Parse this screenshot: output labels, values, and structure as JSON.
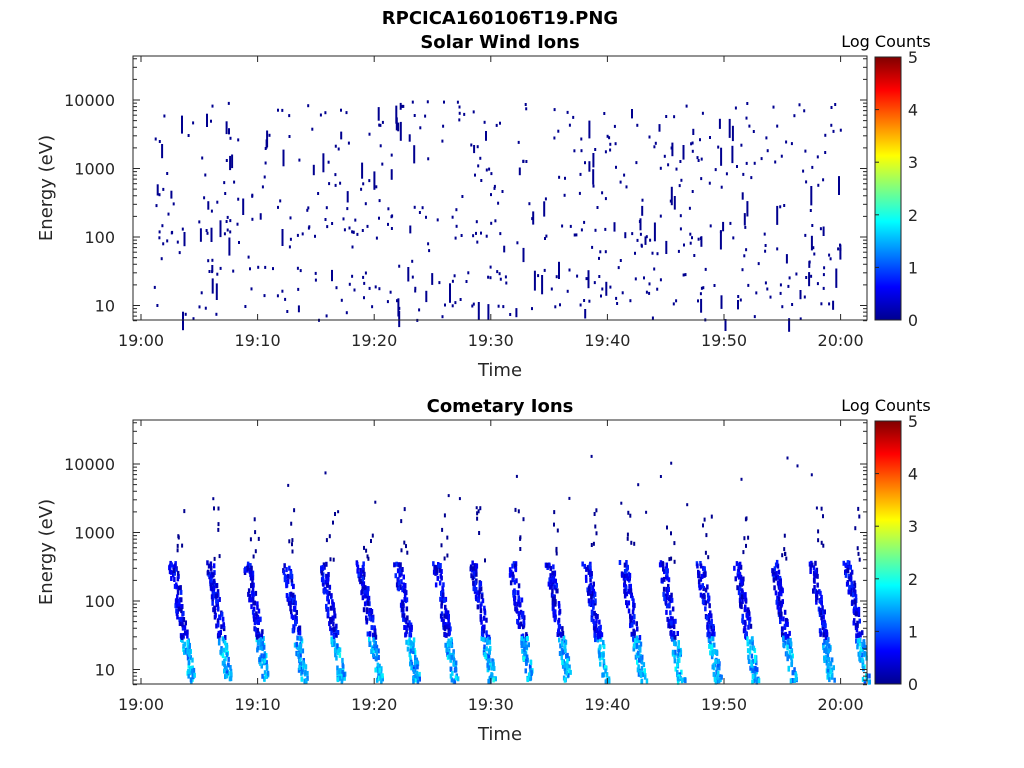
{
  "figure": {
    "title": "RPCICA160106T19.PNG"
  },
  "chart_data": [
    {
      "type": "heatmap",
      "title": "Solar Wind Ions",
      "xlabel": "Time",
      "ylabel": "Energy (eV)",
      "x_ticks": [
        "19:00",
        "19:10",
        "19:20",
        "19:30",
        "19:40",
        "19:50",
        "20:00"
      ],
      "y_ticks": [
        "10",
        "100",
        "1000",
        "10000"
      ],
      "y_scale": "log",
      "ylim": [
        5.5,
        45000
      ],
      "xlim": [
        "19:00",
        "20:02"
      ],
      "colorbar": {
        "label": "Log Counts",
        "ticks": [
          "0",
          "1",
          "2",
          "3",
          "4",
          "5"
        ],
        "range": [
          0,
          5
        ],
        "colormap": "jet"
      },
      "description_pattern": "sparse",
      "grid": false
    },
    {
      "type": "heatmap",
      "title": "Cometary Ions",
      "xlabel": "Time",
      "ylabel": "Energy (eV)",
      "x_ticks": [
        "19:00",
        "19:10",
        "19:20",
        "19:30",
        "19:40",
        "19:50",
        "20:00"
      ],
      "y_ticks": [
        "10",
        "100",
        "1000",
        "10000"
      ],
      "y_scale": "log",
      "ylim": [
        5.5,
        45000
      ],
      "xlim": [
        "19:00",
        "20:02"
      ],
      "colorbar": {
        "label": "Log Counts",
        "ticks": [
          "0",
          "1",
          "2",
          "3",
          "4",
          "5"
        ],
        "range": [
          0,
          5
        ],
        "colormap": "jet"
      },
      "description_pattern": "periodic",
      "burst_times_min": [
        2.6,
        5.8,
        9.0,
        12.3,
        15.5,
        18.7,
        21.9,
        25.2,
        28.4,
        31.7,
        34.9,
        38.1,
        41.3,
        44.6,
        47.8,
        51.0,
        54.2,
        57.5,
        60.5
      ],
      "grid": false
    }
  ]
}
